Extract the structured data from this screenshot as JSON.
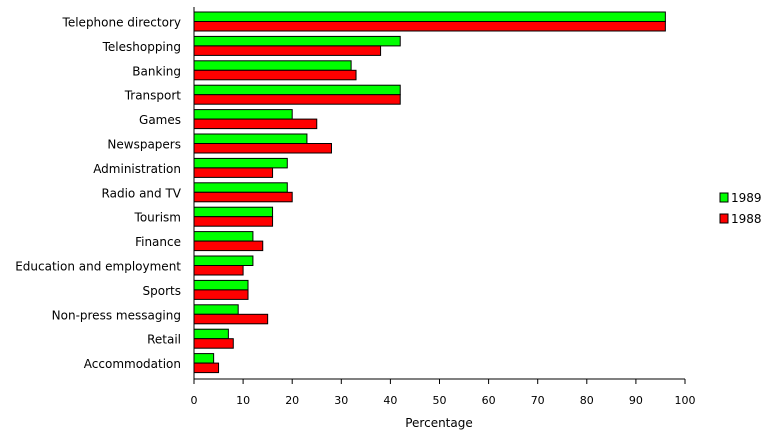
{
  "chart_data": {
    "type": "bar",
    "orientation": "horizontal",
    "categories": [
      "Telephone directory",
      "Teleshopping",
      "Banking",
      "Transport",
      "Games",
      "Newspapers",
      "Administration",
      "Radio and TV",
      "Tourism",
      "Finance",
      "Education and employment",
      "Sports",
      "Non-press messaging",
      "Retail",
      "Accommodation"
    ],
    "series": [
      {
        "name": "1989",
        "color": "#00ff00",
        "values": [
          96,
          42,
          32,
          42,
          20,
          23,
          19,
          19,
          16,
          12,
          12,
          11,
          9,
          7,
          4
        ]
      },
      {
        "name": "1988",
        "color": "#ff0000",
        "values": [
          96,
          38,
          33,
          42,
          25,
          28,
          16,
          20,
          16,
          14,
          10,
          11,
          15,
          8,
          5
        ]
      }
    ],
    "xlabel": "Percentage",
    "xlim": [
      0,
      100
    ],
    "xticks": [
      "0",
      "10",
      "20",
      "30",
      "40",
      "50",
      "60",
      "70",
      "80",
      "90",
      "100"
    ],
    "grid": false,
    "legend": "right"
  }
}
